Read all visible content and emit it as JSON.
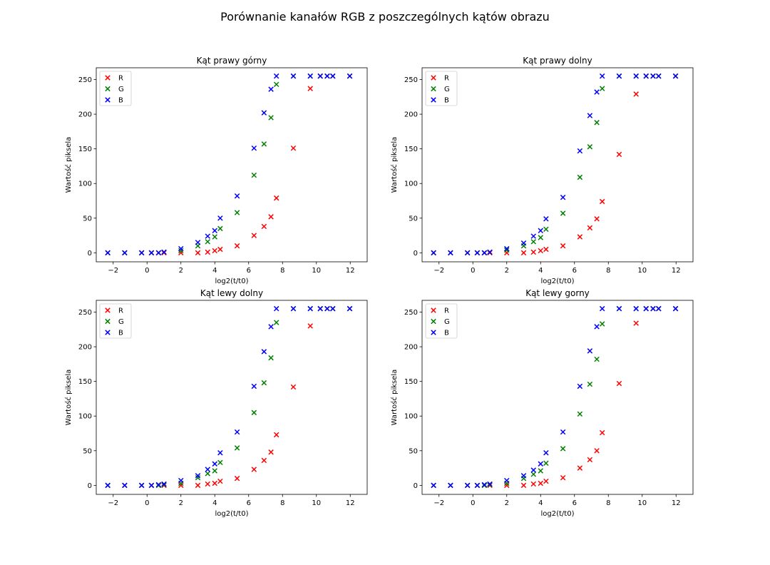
{
  "figure": {
    "title": "Porównanie kanałów RGB z poszczególnych kątów obrazu"
  },
  "chart_data": [
    {
      "type": "scatter",
      "title": "Kąt prawy górny",
      "xlabel": "log2(t/t0)",
      "ylabel": "Wartość piksela",
      "xlim": [
        -3,
        13
      ],
      "ylim": [
        -13,
        267
      ],
      "xticks": [
        -2,
        0,
        2,
        4,
        6,
        8,
        10,
        12
      ],
      "yticks": [
        0,
        50,
        100,
        150,
        200,
        250
      ],
      "grid": false,
      "legend_position": "upper-left",
      "x": [
        -2.32,
        -1.32,
        -0.32,
        0.26,
        0.68,
        1.0,
        2.0,
        3.0,
        3.58,
        4.0,
        4.32,
        5.32,
        6.32,
        6.91,
        7.32,
        7.64,
        8.64,
        9.64,
        10.23,
        10.64,
        10.97,
        11.97
      ],
      "series": [
        {
          "name": "R",
          "color": "#ff0000",
          "values": [
            0,
            0,
            0,
            0,
            0,
            0,
            0,
            0,
            1,
            3,
            5,
            10,
            25,
            38,
            52,
            79,
            151,
            237,
            255,
            255,
            255,
            255
          ]
        },
        {
          "name": "G",
          "color": "#008000",
          "values": [
            0,
            0,
            0,
            0,
            0,
            1,
            3,
            10,
            16,
            23,
            35,
            58,
            112,
            157,
            195,
            243,
            255,
            255,
            255,
            255,
            255,
            255
          ]
        },
        {
          "name": "B",
          "color": "#0000ff",
          "values": [
            0,
            0,
            0,
            0,
            0,
            1,
            6,
            15,
            24,
            32,
            50,
            82,
            151,
            202,
            236,
            255,
            255,
            255,
            255,
            255,
            255,
            255
          ]
        }
      ]
    },
    {
      "type": "scatter",
      "title": "Kąt prawy dolny",
      "xlabel": "log2(t/t0)",
      "ylabel": "Wartość piksela",
      "xlim": [
        -3,
        13
      ],
      "ylim": [
        -13,
        267
      ],
      "xticks": [
        -2,
        0,
        2,
        4,
        6,
        8,
        10,
        12
      ],
      "yticks": [
        0,
        50,
        100,
        150,
        200,
        250
      ],
      "grid": false,
      "legend_position": "upper-left",
      "x": [
        -2.32,
        -1.32,
        -0.32,
        0.26,
        0.68,
        1.0,
        2.0,
        3.0,
        3.58,
        4.0,
        4.32,
        5.32,
        6.32,
        6.91,
        7.32,
        7.64,
        8.64,
        9.64,
        10.23,
        10.64,
        10.97,
        11.97
      ],
      "series": [
        {
          "name": "R",
          "color": "#ff0000",
          "values": [
            0,
            0,
            0,
            0,
            0,
            0,
            0,
            0,
            1,
            3,
            5,
            10,
            23,
            36,
            49,
            74,
            142,
            229,
            255,
            255,
            255,
            255
          ]
        },
        {
          "name": "G",
          "color": "#008000",
          "values": [
            0,
            0,
            0,
            0,
            0,
            1,
            4,
            10,
            16,
            22,
            34,
            57,
            109,
            153,
            188,
            237,
            255,
            255,
            255,
            255,
            255,
            255
          ]
        },
        {
          "name": "B",
          "color": "#0000ff",
          "values": [
            0,
            0,
            0,
            0,
            0,
            1,
            6,
            14,
            24,
            32,
            49,
            80,
            147,
            198,
            232,
            255,
            255,
            255,
            255,
            255,
            255,
            255
          ]
        }
      ]
    },
    {
      "type": "scatter",
      "title": "Kąt lewy dolny",
      "xlabel": "log2(t/t0)",
      "ylabel": "Wartość piksela",
      "xlim": [
        -3,
        13
      ],
      "ylim": [
        -13,
        267
      ],
      "xticks": [
        -2,
        0,
        2,
        4,
        6,
        8,
        10,
        12
      ],
      "yticks": [
        0,
        50,
        100,
        150,
        200,
        250
      ],
      "grid": false,
      "legend_position": "upper-left",
      "x": [
        -2.32,
        -1.32,
        -0.32,
        0.26,
        0.68,
        1.0,
        2.0,
        3.0,
        3.58,
        4.0,
        4.32,
        5.32,
        6.32,
        6.91,
        7.32,
        7.64,
        8.64,
        9.64,
        10.23,
        10.64,
        10.97,
        11.97
      ],
      "series": [
        {
          "name": "R",
          "color": "#ff0000",
          "values": [
            0,
            0,
            0,
            0,
            0,
            0,
            0,
            0,
            2,
            3,
            6,
            10,
            23,
            36,
            48,
            73,
            142,
            230,
            255,
            255,
            255,
            255
          ]
        },
        {
          "name": "G",
          "color": "#008000",
          "values": [
            0,
            0,
            0,
            0,
            0,
            1,
            3,
            11,
            17,
            21,
            33,
            54,
            105,
            148,
            184,
            235,
            255,
            255,
            255,
            255,
            255,
            255
          ]
        },
        {
          "name": "B",
          "color": "#0000ff",
          "values": [
            0,
            0,
            0,
            0,
            1,
            2,
            7,
            14,
            23,
            31,
            47,
            77,
            143,
            193,
            229,
            255,
            255,
            255,
            255,
            255,
            255,
            255
          ]
        }
      ]
    },
    {
      "type": "scatter",
      "title": "Kąt lewy gorny",
      "xlabel": "log2(t/t0)",
      "ylabel": "Wartość piksela",
      "xlim": [
        -3,
        13
      ],
      "ylim": [
        -13,
        267
      ],
      "xticks": [
        -2,
        0,
        2,
        4,
        6,
        8,
        10,
        12
      ],
      "yticks": [
        0,
        50,
        100,
        150,
        200,
        250
      ],
      "grid": false,
      "legend_position": "upper-left",
      "x": [
        -2.32,
        -1.32,
        -0.32,
        0.26,
        0.68,
        1.0,
        2.0,
        3.0,
        3.58,
        4.0,
        4.32,
        5.32,
        6.32,
        6.91,
        7.32,
        7.64,
        8.64,
        9.64,
        10.23,
        10.64,
        10.97,
        11.97
      ],
      "series": [
        {
          "name": "R",
          "color": "#ff0000",
          "values": [
            0,
            0,
            0,
            0,
            0,
            0,
            0,
            0,
            2,
            3,
            6,
            11,
            25,
            37,
            50,
            76,
            147,
            234,
            255,
            255,
            255,
            255
          ]
        },
        {
          "name": "G",
          "color": "#008000",
          "values": [
            0,
            0,
            0,
            0,
            0,
            1,
            3,
            10,
            16,
            21,
            32,
            53,
            103,
            146,
            182,
            233,
            255,
            255,
            255,
            255,
            255,
            255
          ]
        },
        {
          "name": "B",
          "color": "#0000ff",
          "values": [
            0,
            0,
            0,
            0,
            1,
            2,
            7,
            14,
            22,
            31,
            47,
            77,
            143,
            194,
            229,
            255,
            255,
            255,
            255,
            255,
            255,
            255
          ]
        }
      ]
    }
  ]
}
